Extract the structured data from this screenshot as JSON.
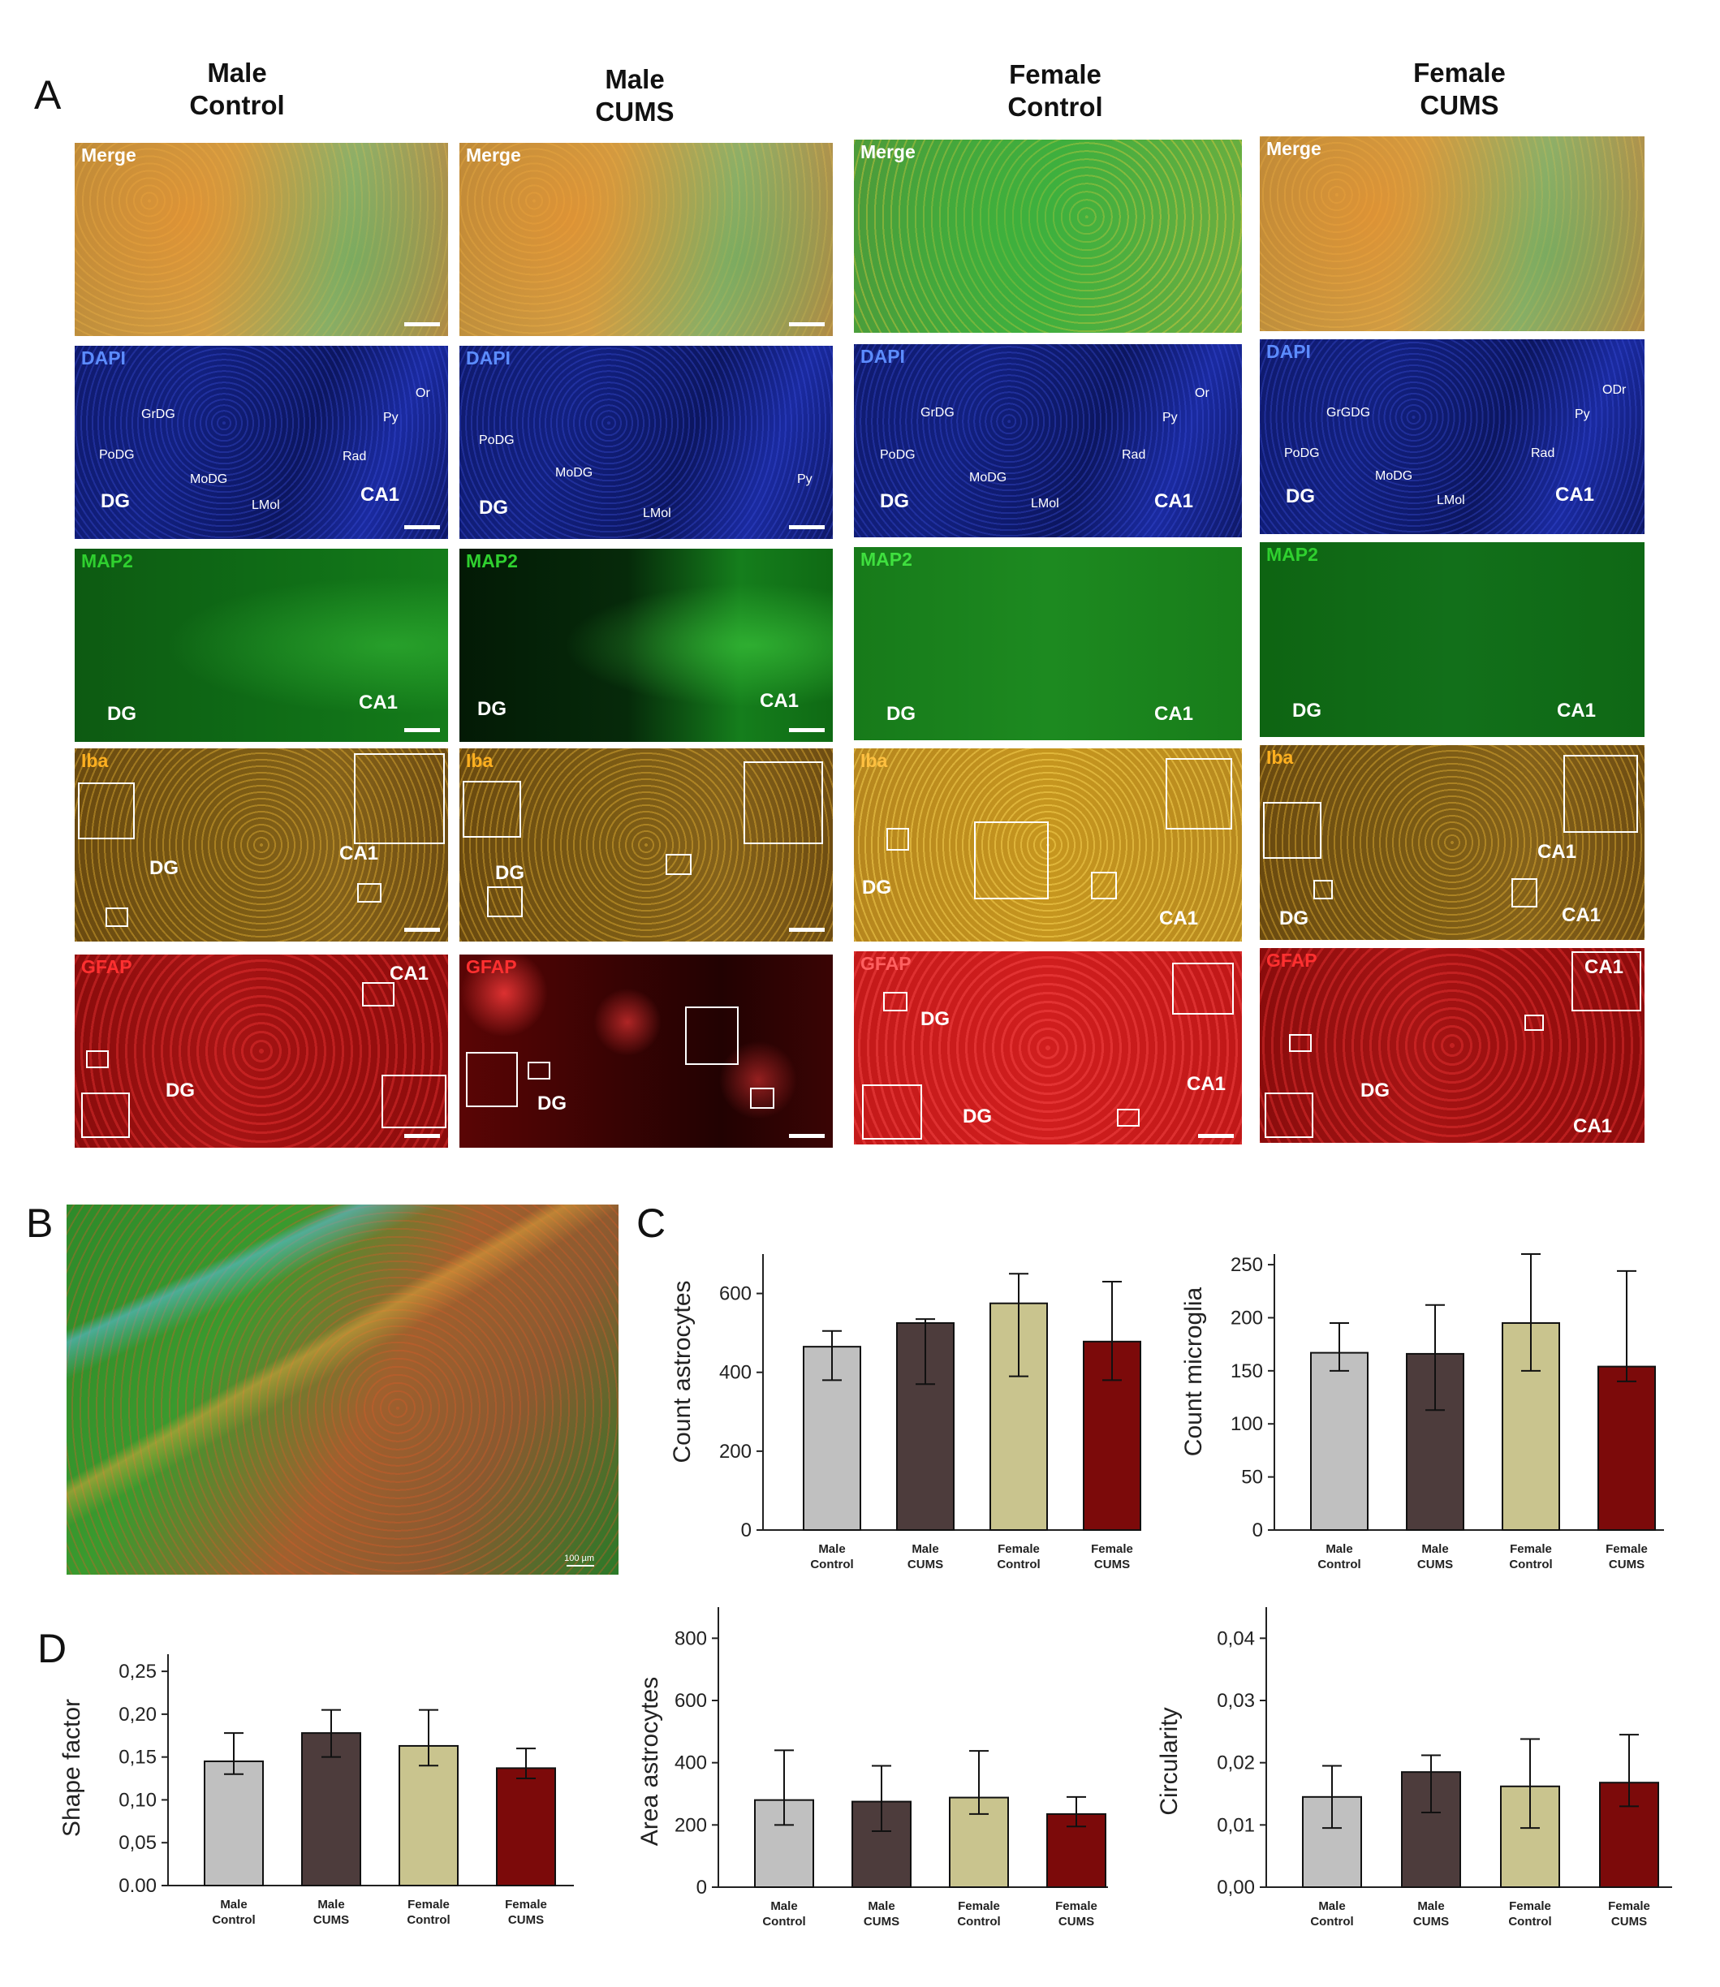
{
  "panel_letters": {
    "A": "A",
    "B": "B",
    "C": "C",
    "D": "D"
  },
  "columns": [
    "Male\nControl",
    "Male\nCUMS",
    "Female\nControl",
    "Female\nCUMS"
  ],
  "column_heads": [
    {
      "l1": "Male",
      "l2": "Control"
    },
    {
      "l1": "Male",
      "l2": "CUMS"
    },
    {
      "l1": "Female",
      "l2": "Control"
    },
    {
      "l1": "Female",
      "l2": "CUMS"
    }
  ],
  "row_labels": {
    "merge": "Merge",
    "dapi": "DAPI",
    "map2": "MAP2",
    "iba": "Iba",
    "gfap": "GFAP"
  },
  "regions": {
    "DG": "DG",
    "CA1": "CA1",
    "GrDG": "GrDG",
    "PoDG": "PoDG",
    "MoDG": "MoDG",
    "LMol": "LMol",
    "Rad": "Rad",
    "Py": "Py",
    "Or": "Or",
    "ODr": "ODr",
    "GrGDG": "GrGDG"
  },
  "scalebar_B": "100 µm",
  "colors": {
    "male_control": "#c0c0c0",
    "male_cums": "#4d3c3c",
    "female_control": "#c9c48e",
    "female_cums": "#7c0a0a"
  },
  "chart_data": [
    {
      "type": "bar",
      "id": "astro-count",
      "categories": [
        "Male\nControl",
        "Male\nCUMS",
        "Female\nControl",
        "Female\nCUMS"
      ],
      "values": [
        465,
        525,
        575,
        478
      ],
      "err_low": [
        380,
        370,
        390,
        380
      ],
      "err_high": [
        505,
        535,
        650,
        630
      ],
      "ylabel": "Count astrocytes",
      "ylim": [
        0,
        700
      ],
      "yticks": [
        "0",
        "200",
        "400",
        "600"
      ],
      "ytick_vals": [
        0,
        200,
        400,
        600
      ]
    },
    {
      "type": "bar",
      "id": "microglia-count",
      "categories": [
        "Male\nControl",
        "Male\nCUMS",
        "Female\nControl",
        "Female\nCUMS"
      ],
      "values": [
        167,
        166,
        195,
        154
      ],
      "err_low": [
        150,
        113,
        150,
        140
      ],
      "err_high": [
        195,
        212,
        260,
        244
      ],
      "ylabel": "Count microglia",
      "ylim": [
        0,
        260
      ],
      "yticks": [
        "0",
        "50",
        "100",
        "150",
        "200",
        "250"
      ],
      "ytick_vals": [
        0,
        50,
        100,
        150,
        200,
        250
      ]
    },
    {
      "type": "bar",
      "id": "shape-factor",
      "categories": [
        "Male\nControl",
        "Male\nCUMS",
        "Female\nControl",
        "Female\nCUMS"
      ],
      "values": [
        0.145,
        0.178,
        0.163,
        0.137
      ],
      "err_low": [
        0.13,
        0.15,
        0.14,
        0.125
      ],
      "err_high": [
        0.178,
        0.205,
        0.205,
        0.16
      ],
      "ylabel": "Shape factor",
      "ylim": [
        0,
        0.27
      ],
      "yticks": [
        "0.00",
        "0,05",
        "0,10",
        "0,15",
        "0,20",
        "0,25"
      ],
      "ytick_vals": [
        0,
        0.05,
        0.1,
        0.15,
        0.2,
        0.25
      ]
    },
    {
      "type": "bar",
      "id": "astro-area",
      "categories": [
        "Male\nControl",
        "Male\nCUMS",
        "Female\nControl",
        "Female\nCUMS"
      ],
      "values": [
        280,
        275,
        288,
        235
      ],
      "err_low": [
        200,
        180,
        235,
        195
      ],
      "err_high": [
        440,
        390,
        438,
        290
      ],
      "ylabel": "Area astrocytes",
      "ylim": [
        0,
        900
      ],
      "yticks": [
        "0",
        "200",
        "400",
        "600",
        "800"
      ],
      "ytick_vals": [
        0,
        200,
        400,
        600,
        800
      ]
    },
    {
      "type": "bar",
      "id": "circularity",
      "categories": [
        "Male\nControl",
        "Male\nCUMS",
        "Female\nControl",
        "Female\nCUMS"
      ],
      "values": [
        0.0145,
        0.0185,
        0.0162,
        0.0168
      ],
      "err_low": [
        0.0095,
        0.012,
        0.0095,
        0.013
      ],
      "err_high": [
        0.0195,
        0.0212,
        0.0238,
        0.0245
      ],
      "ylabel": "Circularity",
      "ylim": [
        0,
        0.045
      ],
      "yticks": [
        "0,00",
        "0,01",
        "0,02",
        "0,03",
        "0,04"
      ],
      "ytick_vals": [
        0,
        0.01,
        0.02,
        0.03,
        0.04
      ]
    }
  ]
}
